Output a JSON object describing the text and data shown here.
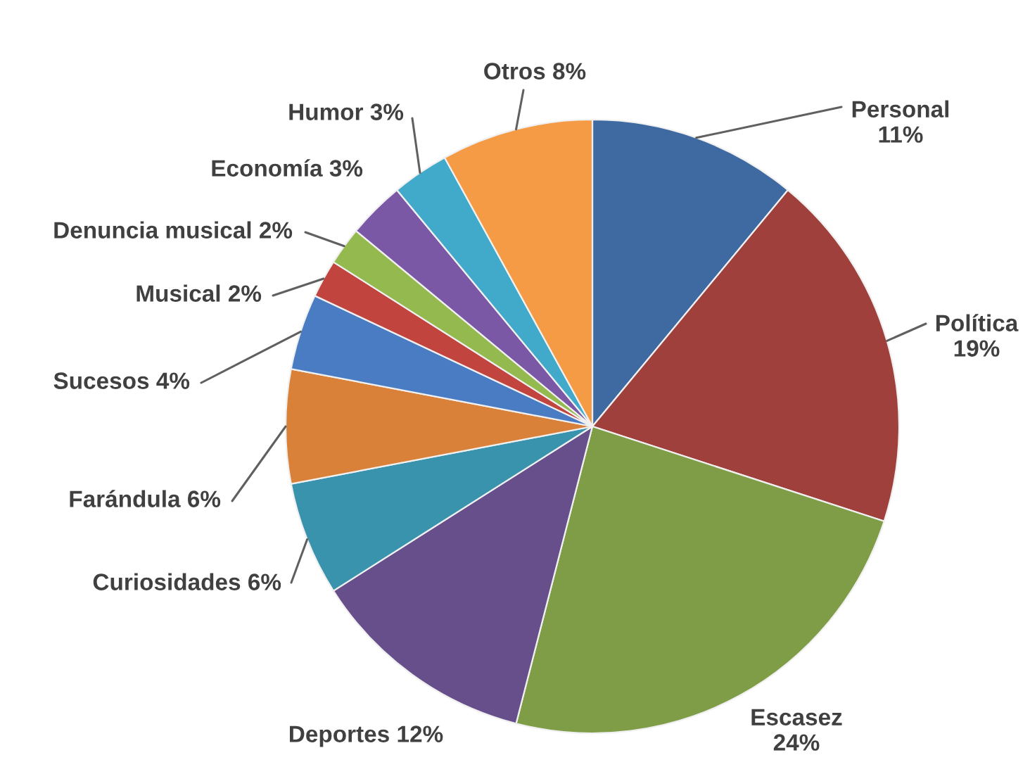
{
  "chart_data": {
    "type": "pie",
    "categories": [
      "Personal",
      "Política",
      "Escasez",
      "Deportes",
      "Curiosidades",
      "Farándula",
      "Sucesos",
      "Musical",
      "Denuncia musical",
      "Economía",
      "Humor",
      "Otros"
    ],
    "values": [
      11,
      19,
      24,
      12,
      6,
      6,
      4,
      2,
      2,
      3,
      3,
      8
    ],
    "value_labels": [
      "11%",
      "19%",
      "24%",
      "12%",
      "6%",
      "6%",
      "4%",
      "2%",
      "2%",
      "3%",
      "3%",
      "8%"
    ],
    "colors": [
      "#3e6aa1",
      "#a0403c",
      "#7f9d47",
      "#674f8c",
      "#3a93ad",
      "#d98139",
      "#4a7cc4",
      "#c1443e",
      "#93b94f",
      "#7b58a6",
      "#41a9c9",
      "#f59b45"
    ]
  }
}
